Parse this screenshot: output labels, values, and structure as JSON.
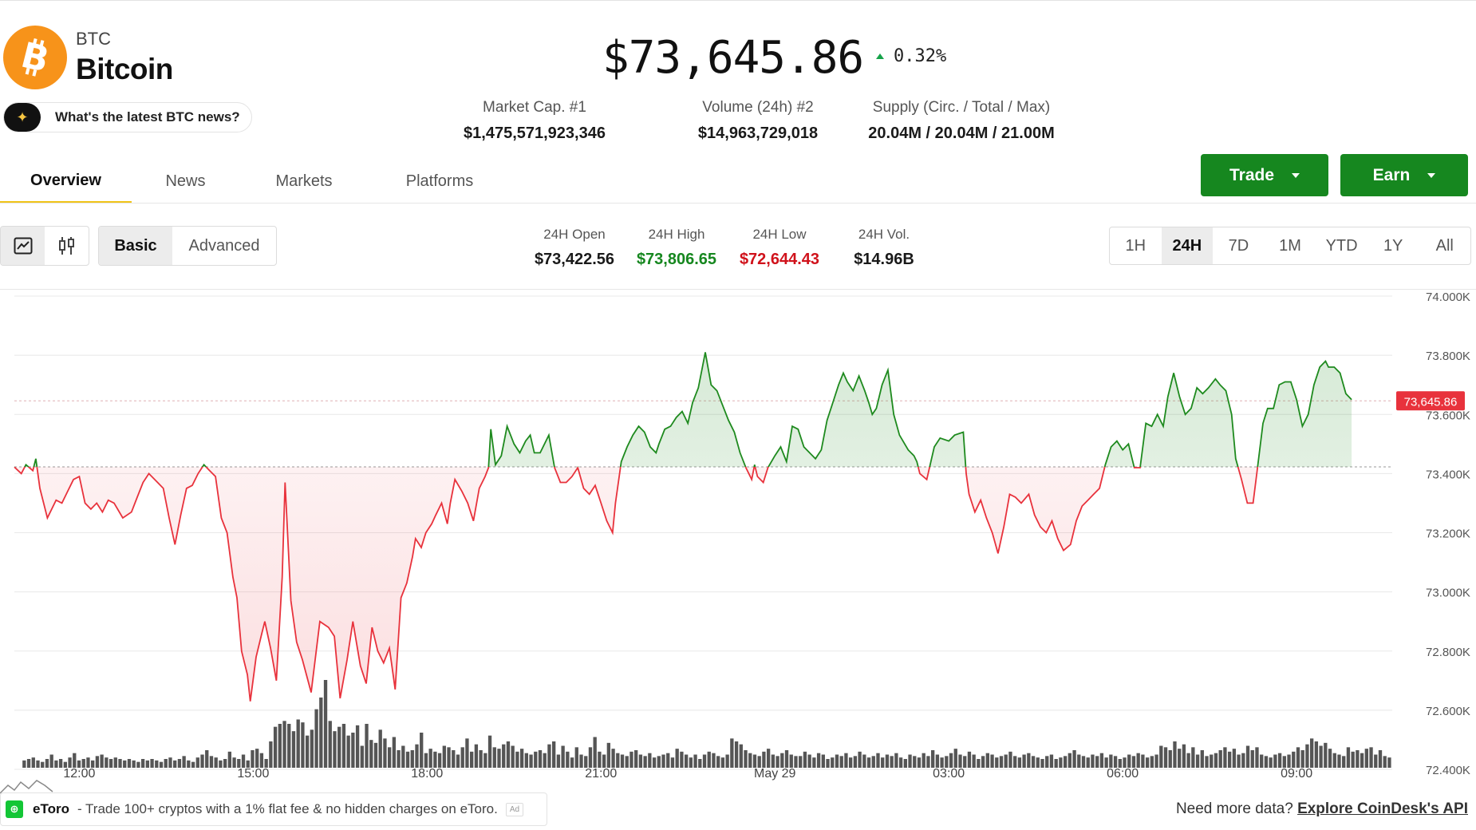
{
  "coin": {
    "symbol": "BTC",
    "name": "Bitcoin",
    "logo_glyph": "B",
    "brand_color": "#f7931a"
  },
  "news_prompt": "What's the latest BTC news?",
  "price": {
    "value": "$73,645.86",
    "change": "0.32%",
    "direction": "up"
  },
  "stats": [
    {
      "label": "Market Cap. #1",
      "value": "$1,475,571,923,346"
    },
    {
      "label": "Volume (24h) #2",
      "value": "$14,963,729,018"
    },
    {
      "label": "Supply (Circ. / Total / Max)",
      "value": "20.04M / 20.04M / 21.00M"
    }
  ],
  "tabs": [
    {
      "label": "Overview",
      "active": true
    },
    {
      "label": "News"
    },
    {
      "label": "Markets"
    },
    {
      "label": "Platforms"
    }
  ],
  "actions": {
    "trade_label": "Trade",
    "earn_label": "Earn",
    "accent": "#16871f"
  },
  "chart_controls": {
    "chart_types": [
      {
        "icon": "line-chart-icon",
        "active": true
      },
      {
        "icon": "candlestick-icon"
      }
    ],
    "modes": [
      {
        "label": "Basic",
        "active": true
      },
      {
        "label": "Advanced"
      }
    ],
    "ranges": [
      {
        "label": "1H"
      },
      {
        "label": "24H",
        "active": true
      },
      {
        "label": "7D"
      },
      {
        "label": "1M"
      },
      {
        "label": "YTD"
      },
      {
        "label": "1Y"
      },
      {
        "label": "All"
      }
    ]
  },
  "ohlc": [
    {
      "label": "24H Open",
      "value": "$73,422.56",
      "color": "#1a1a1a"
    },
    {
      "label": "24H High",
      "value": "$73,806.65",
      "color": "#16871f"
    },
    {
      "label": "24H Low",
      "value": "$72,644.43",
      "color": "#d0121b"
    },
    {
      "label": "24H Vol.",
      "value": "$14.96B",
      "color": "#1a1a1a"
    }
  ],
  "chart_data": {
    "type": "line",
    "baseline": 73422.56,
    "current_price_label": "73,645.86",
    "current_price": 73645.86,
    "ylim": [
      72400,
      74000
    ],
    "y_ticks": [
      {
        "value": 74000,
        "label": "74.000K"
      },
      {
        "value": 73800,
        "label": "73.800K"
      },
      {
        "value": 73600,
        "label": "73.600K"
      },
      {
        "value": 73400,
        "label": "73.400K"
      },
      {
        "value": 73200,
        "label": "73.200K"
      },
      {
        "value": 73000,
        "label": "73.000K"
      },
      {
        "value": 72800,
        "label": "72.800K"
      },
      {
        "value": 72600,
        "label": "72.600K"
      },
      {
        "value": 72400,
        "label": "72.400K"
      }
    ],
    "x_ticks": [
      {
        "t": 1,
        "label": "12:00"
      },
      {
        "t": 4,
        "label": "15:00"
      },
      {
        "t": 7,
        "label": "18:00"
      },
      {
        "t": 10,
        "label": "21:00"
      },
      {
        "t": 13,
        "label": "May 29"
      },
      {
        "t": 16,
        "label": "03:00"
      },
      {
        "t": 19,
        "label": "06:00"
      },
      {
        "t": 22,
        "label": "09:00"
      }
    ],
    "xlim": [
      -0.12,
      23.65
    ],
    "up_color": "#1e8a1e",
    "down_color": "#e8323c",
    "grid": true,
    "price_series": [
      [
        -0.12,
        73422
      ],
      [
        0.0,
        73400
      ],
      [
        0.08,
        73430
      ],
      [
        0.2,
        73410
      ],
      [
        0.25,
        73450
      ],
      [
        0.32,
        73350
      ],
      [
        0.45,
        73250
      ],
      [
        0.6,
        73310
      ],
      [
        0.7,
        73300
      ],
      [
        0.8,
        73340
      ],
      [
        0.9,
        73380
      ],
      [
        1.0,
        73390
      ],
      [
        1.1,
        73300
      ],
      [
        1.2,
        73280
      ],
      [
        1.3,
        73300
      ],
      [
        1.4,
        73270
      ],
      [
        1.5,
        73310
      ],
      [
        1.6,
        73300
      ],
      [
        1.75,
        73250
      ],
      [
        1.9,
        73270
      ],
      [
        2.0,
        73320
      ],
      [
        2.1,
        73370
      ],
      [
        2.2,
        73400
      ],
      [
        2.35,
        73370
      ],
      [
        2.45,
        73350
      ],
      [
        2.55,
        73250
      ],
      [
        2.65,
        73160
      ],
      [
        2.75,
        73260
      ],
      [
        2.85,
        73350
      ],
      [
        2.95,
        73360
      ],
      [
        3.05,
        73400
      ],
      [
        3.15,
        73430
      ],
      [
        3.25,
        73410
      ],
      [
        3.35,
        73390
      ],
      [
        3.45,
        73250
      ],
      [
        3.55,
        73200
      ],
      [
        3.65,
        73050
      ],
      [
        3.72,
        72980
      ],
      [
        3.8,
        72800
      ],
      [
        3.9,
        72720
      ],
      [
        3.95,
        72630
      ],
      [
        4.05,
        72780
      ],
      [
        4.15,
        72860
      ],
      [
        4.2,
        72900
      ],
      [
        4.3,
        72810
      ],
      [
        4.4,
        72700
      ],
      [
        4.5,
        73050
      ],
      [
        4.55,
        73370
      ],
      [
        4.65,
        72970
      ],
      [
        4.75,
        72830
      ],
      [
        4.85,
        72770
      ],
      [
        5.0,
        72660
      ],
      [
        5.15,
        72900
      ],
      [
        5.3,
        72880
      ],
      [
        5.4,
        72850
      ],
      [
        5.5,
        72640
      ],
      [
        5.62,
        72770
      ],
      [
        5.72,
        72900
      ],
      [
        5.85,
        72750
      ],
      [
        5.95,
        72690
      ],
      [
        6.05,
        72880
      ],
      [
        6.15,
        72800
      ],
      [
        6.25,
        72760
      ],
      [
        6.35,
        72810
      ],
      [
        6.45,
        72670
      ],
      [
        6.55,
        72980
      ],
      [
        6.65,
        73030
      ],
      [
        6.75,
        73120
      ],
      [
        6.8,
        73180
      ],
      [
        6.9,
        73150
      ],
      [
        6.98,
        73200
      ],
      [
        7.08,
        73230
      ],
      [
        7.15,
        73260
      ],
      [
        7.25,
        73300
      ],
      [
        7.35,
        73230
      ],
      [
        7.4,
        73300
      ],
      [
        7.48,
        73380
      ],
      [
        7.6,
        73340
      ],
      [
        7.7,
        73300
      ],
      [
        7.8,
        73240
      ],
      [
        7.9,
        73350
      ],
      [
        8.0,
        73390
      ],
      [
        8.06,
        73420
      ],
      [
        8.1,
        73550
      ],
      [
        8.18,
        73430
      ],
      [
        8.28,
        73460
      ],
      [
        8.38,
        73560
      ],
      [
        8.5,
        73500
      ],
      [
        8.6,
        73470
      ],
      [
        8.7,
        73510
      ],
      [
        8.78,
        73530
      ],
      [
        8.85,
        73470
      ],
      [
        8.95,
        73470
      ],
      [
        9.1,
        73530
      ],
      [
        9.2,
        73420
      ],
      [
        9.3,
        73370
      ],
      [
        9.4,
        73370
      ],
      [
        9.5,
        73390
      ],
      [
        9.6,
        73420
      ],
      [
        9.7,
        73350
      ],
      [
        9.8,
        73330
      ],
      [
        9.9,
        73360
      ],
      [
        10.0,
        73300
      ],
      [
        10.1,
        73240
      ],
      [
        10.2,
        73200
      ],
      [
        10.25,
        73300
      ],
      [
        10.35,
        73440
      ],
      [
        10.45,
        73490
      ],
      [
        10.55,
        73530
      ],
      [
        10.65,
        73560
      ],
      [
        10.75,
        73540
      ],
      [
        10.85,
        73490
      ],
      [
        10.95,
        73470
      ],
      [
        11.0,
        73500
      ],
      [
        11.1,
        73550
      ],
      [
        11.2,
        73560
      ],
      [
        11.3,
        73590
      ],
      [
        11.4,
        73610
      ],
      [
        11.5,
        73570
      ],
      [
        11.58,
        73640
      ],
      [
        11.68,
        73690
      ],
      [
        11.75,
        73760
      ],
      [
        11.8,
        73810
      ],
      [
        11.9,
        73700
      ],
      [
        12.0,
        73680
      ],
      [
        12.1,
        73630
      ],
      [
        12.2,
        73580
      ],
      [
        12.3,
        73540
      ],
      [
        12.4,
        73470
      ],
      [
        12.5,
        73420
      ],
      [
        12.6,
        73380
      ],
      [
        12.65,
        73430
      ],
      [
        12.7,
        73390
      ],
      [
        12.8,
        73370
      ],
      [
        12.88,
        73420
      ],
      [
        13.0,
        73460
      ],
      [
        13.1,
        73490
      ],
      [
        13.2,
        73440
      ],
      [
        13.3,
        73560
      ],
      [
        13.4,
        73550
      ],
      [
        13.5,
        73490
      ],
      [
        13.6,
        73470
      ],
      [
        13.7,
        73450
      ],
      [
        13.8,
        73480
      ],
      [
        13.9,
        73580
      ],
      [
        14.0,
        73640
      ],
      [
        14.1,
        73700
      ],
      [
        14.18,
        73740
      ],
      [
        14.25,
        73710
      ],
      [
        14.35,
        73680
      ],
      [
        14.45,
        73730
      ],
      [
        14.55,
        73680
      ],
      [
        14.62,
        73640
      ],
      [
        14.68,
        73600
      ],
      [
        14.75,
        73620
      ],
      [
        14.85,
        73700
      ],
      [
        14.95,
        73750
      ],
      [
        15.05,
        73600
      ],
      [
        15.15,
        73530
      ],
      [
        15.3,
        73480
      ],
      [
        15.4,
        73460
      ],
      [
        15.45,
        73440
      ],
      [
        15.5,
        73400
      ],
      [
        15.62,
        73380
      ],
      [
        15.75,
        73490
      ],
      [
        15.85,
        73520
      ],
      [
        16.0,
        73510
      ],
      [
        16.1,
        73530
      ],
      [
        16.25,
        73540
      ],
      [
        16.3,
        73400
      ],
      [
        16.35,
        73330
      ],
      [
        16.45,
        73270
      ],
      [
        16.55,
        73310
      ],
      [
        16.65,
        73250
      ],
      [
        16.75,
        73200
      ],
      [
        16.85,
        73130
      ],
      [
        16.95,
        73220
      ],
      [
        17.05,
        73330
      ],
      [
        17.15,
        73320
      ],
      [
        17.25,
        73300
      ],
      [
        17.38,
        73330
      ],
      [
        17.48,
        73260
      ],
      [
        17.58,
        73220
      ],
      [
        17.68,
        73200
      ],
      [
        17.78,
        73240
      ],
      [
        17.88,
        73180
      ],
      [
        17.98,
        73140
      ],
      [
        18.1,
        73160
      ],
      [
        18.2,
        73240
      ],
      [
        18.3,
        73290
      ],
      [
        18.4,
        73310
      ],
      [
        18.5,
        73330
      ],
      [
        18.6,
        73350
      ],
      [
        18.7,
        73430
      ],
      [
        18.8,
        73490
      ],
      [
        18.9,
        73510
      ],
      [
        19.0,
        73480
      ],
      [
        19.1,
        73500
      ],
      [
        19.2,
        73420
      ],
      [
        19.3,
        73420
      ],
      [
        19.4,
        73570
      ],
      [
        19.5,
        73560
      ],
      [
        19.6,
        73600
      ],
      [
        19.7,
        73560
      ],
      [
        19.78,
        73660
      ],
      [
        19.88,
        73740
      ],
      [
        19.98,
        73660
      ],
      [
        20.08,
        73600
      ],
      [
        20.18,
        73620
      ],
      [
        20.28,
        73690
      ],
      [
        20.38,
        73670
      ],
      [
        20.48,
        73690
      ],
      [
        20.6,
        73720
      ],
      [
        20.68,
        73700
      ],
      [
        20.78,
        73680
      ],
      [
        20.88,
        73600
      ],
      [
        20.95,
        73450
      ],
      [
        21.05,
        73380
      ],
      [
        21.15,
        73300
      ],
      [
        21.25,
        73300
      ],
      [
        21.32,
        73410
      ],
      [
        21.42,
        73570
      ],
      [
        21.5,
        73620
      ],
      [
        21.6,
        73620
      ],
      [
        21.7,
        73700
      ],
      [
        21.8,
        73710
      ],
      [
        21.9,
        73710
      ],
      [
        22.0,
        73650
      ],
      [
        22.1,
        73560
      ],
      [
        22.2,
        73600
      ],
      [
        22.3,
        73700
      ],
      [
        22.4,
        73760
      ],
      [
        22.5,
        73780
      ],
      [
        22.55,
        73760
      ],
      [
        22.65,
        73760
      ],
      [
        22.75,
        73740
      ],
      [
        22.85,
        73670
      ],
      [
        22.95,
        73650
      ]
    ],
    "volume_series": [
      5,
      6,
      7,
      5,
      4,
      6,
      9,
      5,
      6,
      4,
      7,
      10,
      5,
      6,
      7,
      5,
      8,
      9,
      7,
      6,
      7,
      6,
      5,
      6,
      5,
      4,
      6,
      5,
      6,
      5,
      4,
      6,
      7,
      5,
      6,
      8,
      5,
      4,
      7,
      9,
      12,
      8,
      7,
      5,
      6,
      11,
      7,
      6,
      9,
      5,
      12,
      13,
      10,
      6,
      18,
      28,
      30,
      32,
      30,
      25,
      33,
      31,
      22,
      26,
      40,
      48,
      60,
      32,
      25,
      28,
      30,
      22,
      24,
      29,
      15,
      30,
      19,
      17,
      26,
      20,
      14,
      21,
      12,
      15,
      11,
      12,
      16,
      24,
      10,
      13,
      11,
      10,
      15,
      14,
      12,
      9,
      14,
      20,
      11,
      16,
      12,
      10,
      22,
      14,
      13,
      16,
      18,
      15,
      11,
      13,
      10,
      9,
      11,
      12,
      10,
      16,
      18,
      9,
      15,
      11,
      7,
      14,
      9,
      8,
      14,
      21,
      11,
      9,
      17,
      13,
      10,
      9,
      8,
      11,
      12,
      9,
      8,
      10,
      7,
      8,
      9,
      10,
      7,
      13,
      11,
      9,
      7,
      9,
      6,
      9,
      11,
      10,
      8,
      7,
      9,
      20,
      18,
      16,
      12,
      10,
      9,
      8,
      11,
      13,
      9,
      8,
      10,
      12,
      9,
      8,
      8,
      11,
      9,
      7,
      10,
      9,
      6,
      7,
      9,
      8,
      10,
      7,
      8,
      11,
      9,
      7,
      8,
      10,
      7,
      9,
      8,
      10,
      7,
      6,
      9,
      8,
      7,
      10,
      8,
      12,
      9,
      7,
      8,
      10,
      13,
      9,
      8,
      11,
      9,
      6,
      8,
      10,
      9,
      7,
      8,
      9,
      11,
      8,
      7,
      9,
      10,
      8,
      7,
      6,
      8,
      9,
      6,
      7,
      8,
      10,
      12,
      9,
      8,
      7,
      9,
      8,
      10,
      7,
      9,
      8,
      6,
      7,
      9,
      8,
      10,
      9,
      7,
      8,
      9,
      15,
      14,
      12,
      18,
      13,
      16,
      10,
      14,
      9,
      12,
      8,
      9,
      10,
      12,
      14,
      11,
      13,
      9,
      10,
      15,
      12,
      14,
      9,
      8,
      7,
      9,
      10,
      8,
      9,
      11,
      14,
      12,
      16,
      20,
      18,
      15,
      17,
      13,
      10,
      9,
      8,
      14,
      11,
      12,
      10,
      13,
      14,
      9,
      12,
      8,
      7
    ],
    "volume_xlim": [
      0.02,
      23.65
    ]
  },
  "footer": {
    "ad_icon_glyph": "⊕",
    "ad_brand": "eToro",
    "ad_text": "- Trade 100+ cryptos with a 1% flat fee & no hidden charges on eToro.",
    "ad_badge": "Ad",
    "more_data_text": "Need more data?",
    "more_data_link": "Explore CoinDesk's API"
  }
}
